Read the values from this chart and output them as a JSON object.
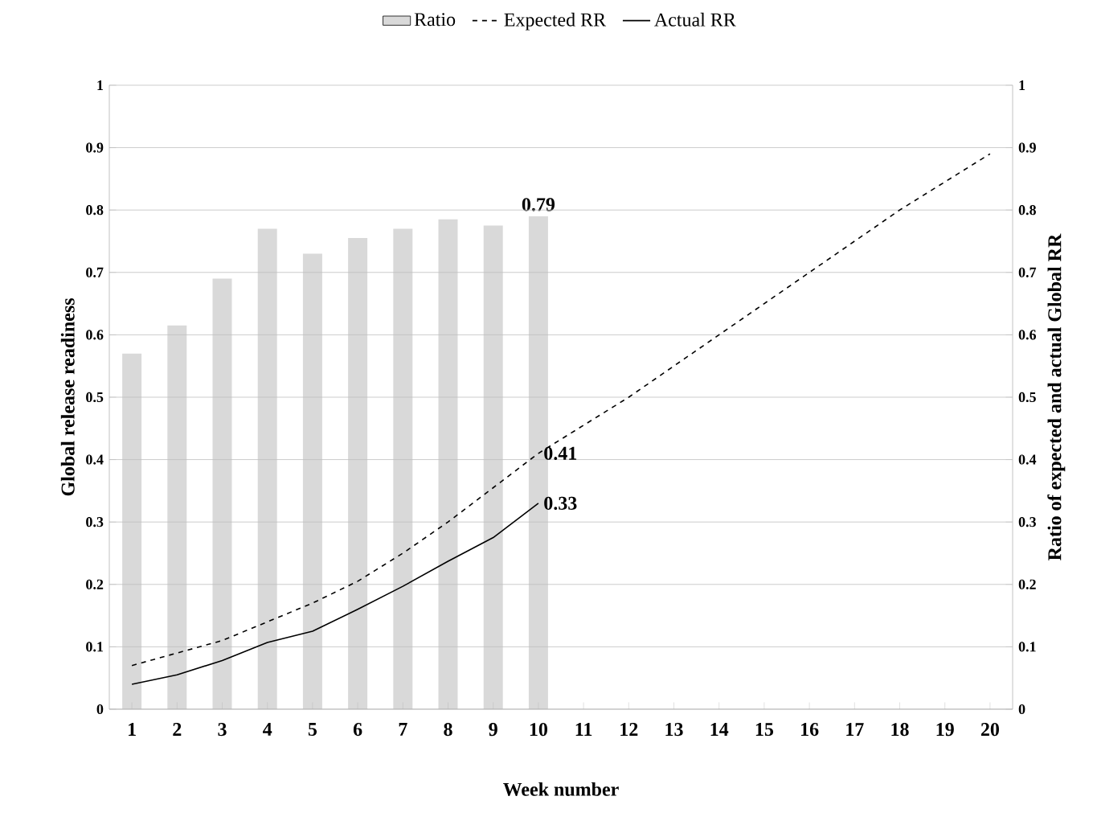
{
  "chart_data": {
    "type": "line",
    "xlabel": "Week number",
    "ylabel": "Global release readiness",
    "y2label": "Ratio of expected and actual Global RR",
    "categories": [
      "1",
      "2",
      "3",
      "4",
      "5",
      "6",
      "7",
      "8",
      "9",
      "10",
      "11",
      "12",
      "13",
      "14",
      "15",
      "16",
      "17",
      "18",
      "19",
      "20"
    ],
    "series": [
      {
        "name": "Ratio",
        "type": "bar",
        "axis": "y2",
        "color": "#d9d9d9",
        "values": [
          0.57,
          0.615,
          0.69,
          0.77,
          0.73,
          0.755,
          0.77,
          0.785,
          0.775,
          0.79,
          null,
          null,
          null,
          null,
          null,
          null,
          null,
          null,
          null,
          null
        ],
        "value_labels": [
          null,
          null,
          null,
          null,
          null,
          null,
          null,
          null,
          null,
          "0.79",
          null,
          null,
          null,
          null,
          null,
          null,
          null,
          null,
          null,
          null
        ]
      },
      {
        "name": "Expected RR",
        "line_style": "dashed",
        "color": "#000000",
        "values": [
          0.07,
          0.09,
          0.11,
          0.14,
          0.17,
          0.205,
          0.25,
          0.3,
          0.355,
          0.41,
          0.455,
          0.5,
          0.55,
          0.6,
          0.65,
          0.7,
          0.75,
          0.8,
          0.845,
          0.89
        ],
        "value_labels": [
          null,
          null,
          null,
          null,
          null,
          null,
          null,
          null,
          null,
          "0.41",
          null,
          null,
          null,
          null,
          null,
          null,
          null,
          null,
          null,
          null
        ]
      },
      {
        "name": "Actual RR",
        "line_style": "solid",
        "color": "#000000",
        "values": [
          0.04,
          0.055,
          0.078,
          0.107,
          0.125,
          0.16,
          0.197,
          0.237,
          0.275,
          0.33,
          null,
          null,
          null,
          null,
          null,
          null,
          null,
          null,
          null,
          null
        ],
        "value_labels": [
          null,
          null,
          null,
          null,
          null,
          null,
          null,
          null,
          null,
          "0.33",
          null,
          null,
          null,
          null,
          null,
          null,
          null,
          null,
          null,
          null
        ]
      }
    ],
    "ylim": [
      0,
      1
    ],
    "yticks": [
      0,
      0.1,
      0.2,
      0.3,
      0.4,
      0.5,
      0.6,
      0.7,
      0.8,
      0.9,
      1
    ],
    "y2lim": [
      0,
      1
    ],
    "y2ticks": [
      0,
      0.1,
      0.2,
      0.3,
      0.4,
      0.5,
      0.6,
      0.7,
      0.8,
      0.9,
      1
    ],
    "grid": "y",
    "legend": "top"
  }
}
